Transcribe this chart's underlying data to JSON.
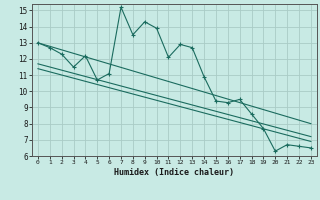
{
  "xlabel": "Humidex (Indice chaleur)",
  "background_color": "#c8eae4",
  "line_color": "#1a6b5e",
  "grid_color": "#aaccc6",
  "xlim": [
    -0.5,
    23.5
  ],
  "ylim": [
    6,
    15.4
  ],
  "yticks": [
    6,
    7,
    8,
    9,
    10,
    11,
    12,
    13,
    14,
    15
  ],
  "xticks": [
    0,
    1,
    2,
    3,
    4,
    5,
    6,
    7,
    8,
    9,
    10,
    11,
    12,
    13,
    14,
    15,
    16,
    17,
    18,
    19,
    20,
    21,
    22,
    23
  ],
  "series": [
    {
      "x": [
        0,
        1,
        2,
        3,
        4,
        5,
        6,
        7,
        8,
        9,
        10,
        11,
        12,
        13,
        14,
        15,
        16,
        17,
        18,
        19,
        20,
        21,
        22,
        23
      ],
      "y": [
        13.0,
        12.7,
        12.3,
        11.5,
        12.2,
        10.7,
        11.1,
        15.2,
        13.5,
        14.3,
        13.9,
        12.1,
        12.9,
        12.7,
        10.9,
        9.4,
        9.3,
        9.5,
        8.6,
        7.7,
        6.3,
        6.7,
        6.6,
        6.5
      ]
    },
    {
      "x": [
        0,
        23
      ],
      "y": [
        13.0,
        8.0
      ]
    },
    {
      "x": [
        0,
        23
      ],
      "y": [
        11.7,
        7.2
      ]
    },
    {
      "x": [
        0,
        23
      ],
      "y": [
        11.4,
        6.9
      ]
    }
  ]
}
